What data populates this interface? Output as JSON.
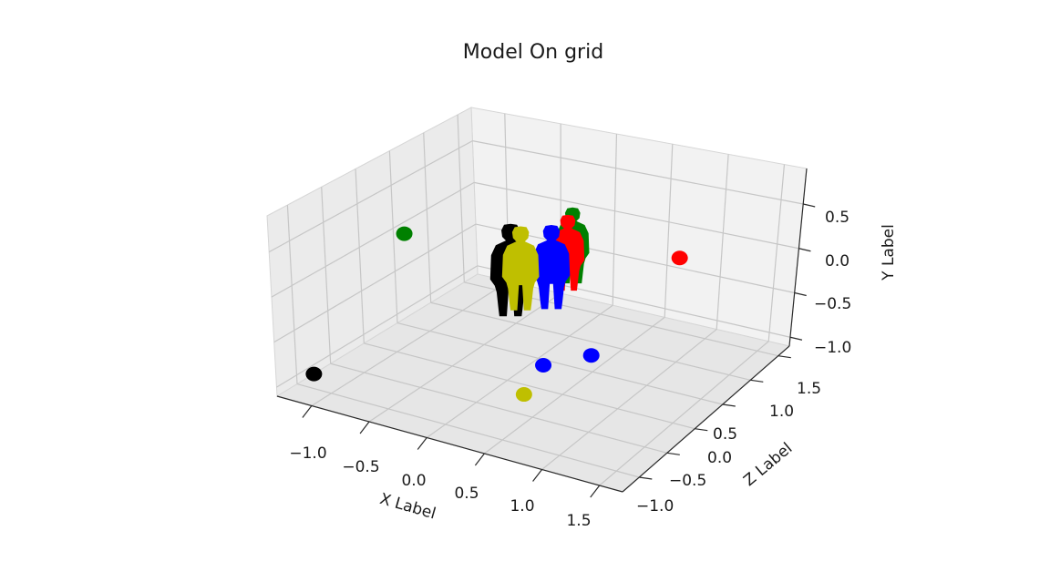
{
  "chart_data": {
    "type": "scatter",
    "projection": "3d",
    "title": "Model On grid",
    "xlabel": "X Label",
    "ylabel": "Y Label",
    "zlabel": "Z Label",
    "grid": true,
    "x_ticks": [
      "−1.0",
      "−0.5",
      "0.0",
      "0.5",
      "1.0",
      "1.5"
    ],
    "y_ticks": [
      "0.5",
      "0.0",
      "−0.5",
      "−1.0"
    ],
    "z_ticks": [
      "1.5",
      "1.0",
      "0.5",
      "0.0",
      "−0.5",
      "−1.0"
    ],
    "colors": {
      "black": "#000000",
      "yellow": "#bfbf00",
      "blue": "#0000ff",
      "red": "#ff0000",
      "green": "#008000"
    },
    "series": [
      {
        "color": "#008000",
        "marker": "point",
        "x": -1.2,
        "y": 0.0,
        "z": 0.5
      },
      {
        "color": "#ff0000",
        "marker": "point",
        "x": 1.0,
        "y": 0.0,
        "z": 1.2
      },
      {
        "color": "#0000ff",
        "marker": "point",
        "x": 1.5,
        "y": 0.0,
        "z": -0.9
      },
      {
        "color": "#000000",
        "marker": "point",
        "x": -1.2,
        "y": -1.0,
        "z": -0.9
      },
      {
        "color": "#0000ff",
        "marker": "point",
        "x": 0.3,
        "y": -1.0,
        "z": 0.2
      },
      {
        "color": "#bfbf00",
        "marker": "point",
        "x": 0.5,
        "y": -1.0,
        "z": -0.4
      },
      {
        "color": "#008000",
        "marker": "figure",
        "x": 0.25,
        "y": -0.3,
        "z": 0.75
      },
      {
        "color": "#ff0000",
        "marker": "figure",
        "x": 0.3,
        "y": -0.3,
        "z": 0.6
      },
      {
        "color": "#0000ff",
        "marker": "figure",
        "x": 0.3,
        "y": -0.4,
        "z": 0.35
      },
      {
        "color": "#000000",
        "marker": "figure",
        "x": 0.0,
        "y": -0.5,
        "z": 0.2
      },
      {
        "color": "#bfbf00",
        "marker": "figure",
        "x": 0.1,
        "y": -0.4,
        "z": 0.2
      }
    ]
  }
}
